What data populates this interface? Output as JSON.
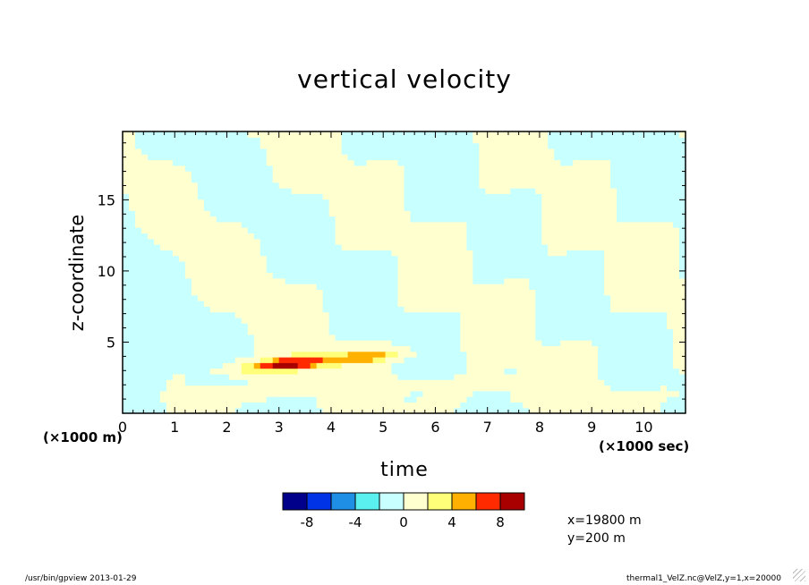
{
  "chart_data": {
    "type": "heatmap",
    "title": "vertical velocity",
    "xlabel": "time",
    "ylabel": "z-coordinate",
    "x_unit": "(×1000 sec)",
    "y_unit": "(×1000 m)",
    "xlim": [
      0,
      10.8
    ],
    "ylim": [
      0,
      19.8
    ],
    "x_ticks": [
      0,
      1,
      2,
      3,
      4,
      5,
      6,
      7,
      8,
      9,
      10
    ],
    "y_ticks": [
      5,
      10,
      15
    ],
    "colorbar": {
      "levels": [
        -10,
        -8,
        -6,
        -4,
        -2,
        0,
        2,
        4,
        6,
        8,
        10
      ],
      "labels": [
        "-8",
        "-4",
        "0",
        "4",
        "8"
      ],
      "label_values": [
        -8,
        -4,
        0,
        4,
        8
      ],
      "colors": [
        "#00008b",
        "#0033e6",
        "#1f8fe6",
        "#5af0f0",
        "#c8ffff",
        "#ffffd0",
        "#ffff7a",
        "#ffb000",
        "#ff2a00",
        "#a80000"
      ]
    },
    "features": [
      {
        "kind": "updraft",
        "center_x": 3.2,
        "center_z": 3.5,
        "peak": 9
      },
      {
        "kind": "updraft",
        "center_x": 4.7,
        "center_z": 4.0,
        "peak": 5
      }
    ]
  },
  "info": {
    "x_text": "x=19800  m",
    "y_text": "y=200  m"
  },
  "footer": {
    "left": "/usr/bin/gpview  2013-01-29",
    "right": "thermal1_VelZ.nc@VelZ,y=1,x=20000"
  }
}
